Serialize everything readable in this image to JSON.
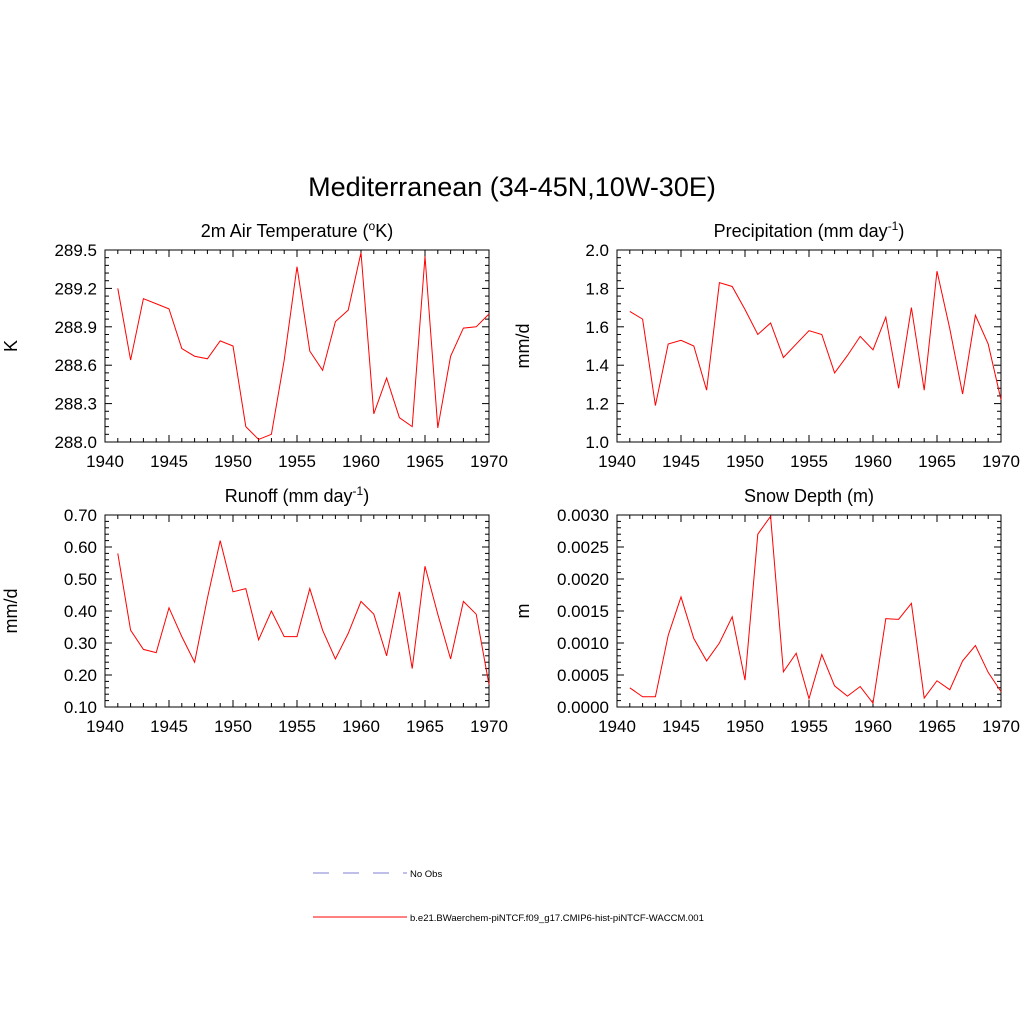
{
  "figure": {
    "title": "Mediterranean (34-45N,10W-30E)"
  },
  "legend": {
    "items": [
      {
        "label": "No Obs",
        "style": "dashed",
        "color": "#9999dd"
      },
      {
        "label": "b.e21.BWaerchem-piNTCF.f09_g17.CMIP6-hist-piNTCF-WACCM.001",
        "style": "solid",
        "color": "#ff0000"
      }
    ]
  },
  "chart_data": [
    {
      "type": "line",
      "title": "2m Air Temperature (",
      "title_super": "o",
      "title_after": "K)",
      "ylabel": "K",
      "xlim": [
        1940,
        1970
      ],
      "ylim": [
        288.0,
        289.5
      ],
      "xticks": [
        1940,
        1945,
        1950,
        1955,
        1960,
        1965,
        1970
      ],
      "xtick_labels": [
        "1940",
        "1945",
        "1950",
        "1955",
        "1960",
        "1965",
        "1970"
      ],
      "yticks": [
        288.0,
        288.3,
        288.6,
        288.9,
        289.2,
        289.5
      ],
      "ytick_labels": [
        "288.0",
        "288.3",
        "288.6",
        "288.9",
        "289.2",
        "289.5"
      ],
      "series": [
        {
          "color": "#ff0000",
          "x": [
            1941,
            1942,
            1943,
            1944,
            1945,
            1946,
            1947,
            1948,
            1949,
            1950,
            1951,
            1952,
            1953,
            1954,
            1955,
            1956,
            1957,
            1958,
            1959,
            1960,
            1961,
            1962,
            1963,
            1964,
            1965,
            1966,
            1967,
            1968,
            1969,
            1970
          ],
          "y": [
            289.2,
            288.64,
            289.12,
            289.08,
            289.04,
            288.73,
            288.67,
            288.65,
            288.79,
            288.75,
            288.12,
            288.02,
            288.06,
            288.64,
            289.37,
            288.71,
            288.56,
            288.94,
            289.03,
            289.48,
            288.22,
            288.5,
            288.19,
            288.12,
            289.45,
            288.11,
            288.67,
            288.89,
            288.9,
            289.0
          ]
        }
      ]
    },
    {
      "type": "line",
      "title": "Precipitation (mm day",
      "title_super": "-1",
      "title_after": ")",
      "ylabel": "mm/d",
      "xlim": [
        1940,
        1970
      ],
      "ylim": [
        1.0,
        2.0
      ],
      "xticks": [
        1940,
        1945,
        1950,
        1955,
        1960,
        1965,
        1970
      ],
      "xtick_labels": [
        "1940",
        "1945",
        "1950",
        "1955",
        "1960",
        "1965",
        "1970"
      ],
      "yticks": [
        1.0,
        1.2,
        1.4,
        1.6,
        1.8,
        2.0
      ],
      "ytick_labels": [
        "1.0",
        "1.2",
        "1.4",
        "1.6",
        "1.8",
        "2.0"
      ],
      "series": [
        {
          "color": "#ff0000",
          "x": [
            1941,
            1942,
            1943,
            1944,
            1945,
            1946,
            1947,
            1948,
            1949,
            1950,
            1951,
            1952,
            1953,
            1954,
            1955,
            1956,
            1957,
            1958,
            1959,
            1960,
            1961,
            1962,
            1963,
            1964,
            1965,
            1966,
            1967,
            1968,
            1969,
            1970
          ],
          "y": [
            1.68,
            1.64,
            1.19,
            1.51,
            1.53,
            1.5,
            1.27,
            1.83,
            1.81,
            1.69,
            1.56,
            1.62,
            1.44,
            1.51,
            1.58,
            1.56,
            1.36,
            1.45,
            1.55,
            1.48,
            1.65,
            1.28,
            1.7,
            1.27,
            1.89,
            1.59,
            1.25,
            1.66,
            1.51,
            1.22
          ]
        }
      ]
    },
    {
      "type": "line",
      "title": "Runoff (mm day",
      "title_super": "-1",
      "title_after": ")",
      "ylabel": "mm/d",
      "xlim": [
        1940,
        1970
      ],
      "ylim": [
        0.1,
        0.7
      ],
      "xticks": [
        1940,
        1945,
        1950,
        1955,
        1960,
        1965,
        1970
      ],
      "xtick_labels": [
        "1940",
        "1945",
        "1950",
        "1955",
        "1960",
        "1965",
        "1970"
      ],
      "yticks": [
        0.1,
        0.2,
        0.3,
        0.4,
        0.5,
        0.6,
        0.7
      ],
      "ytick_labels": [
        "0.10",
        "0.20",
        "0.30",
        "0.40",
        "0.50",
        "0.60",
        "0.70"
      ],
      "series": [
        {
          "color": "#ff0000",
          "x": [
            1941,
            1942,
            1943,
            1944,
            1945,
            1946,
            1947,
            1948,
            1949,
            1950,
            1951,
            1952,
            1953,
            1954,
            1955,
            1956,
            1957,
            1958,
            1959,
            1960,
            1961,
            1962,
            1963,
            1964,
            1965,
            1966,
            1967,
            1968,
            1969,
            1970
          ],
          "y": [
            0.58,
            0.34,
            0.28,
            0.27,
            0.41,
            0.32,
            0.24,
            0.44,
            0.62,
            0.46,
            0.47,
            0.31,
            0.4,
            0.32,
            0.32,
            0.47,
            0.34,
            0.25,
            0.33,
            0.43,
            0.39,
            0.26,
            0.46,
            0.22,
            0.54,
            0.39,
            0.25,
            0.43,
            0.39,
            0.17
          ]
        }
      ]
    },
    {
      "type": "line",
      "title": "Snow Depth (m)",
      "title_super": "",
      "title_after": "",
      "ylabel": "m",
      "xlim": [
        1940,
        1970
      ],
      "ylim": [
        0.0,
        0.003
      ],
      "xticks": [
        1940,
        1945,
        1950,
        1955,
        1960,
        1965,
        1970
      ],
      "xtick_labels": [
        "1940",
        "1945",
        "1950",
        "1955",
        "1960",
        "1965",
        "1970"
      ],
      "yticks": [
        0.0,
        0.0005,
        0.001,
        0.0015,
        0.002,
        0.0025,
        0.003
      ],
      "ytick_labels": [
        "0.0000",
        "0.0005",
        "0.0010",
        "0.0015",
        "0.0020",
        "0.0025",
        "0.0030"
      ],
      "series": [
        {
          "color": "#ff0000",
          "x": [
            1941,
            1942,
            1943,
            1944,
            1945,
            1946,
            1947,
            1948,
            1949,
            1950,
            1951,
            1952,
            1953,
            1954,
            1955,
            1956,
            1957,
            1958,
            1959,
            1960,
            1961,
            1962,
            1963,
            1964,
            1965,
            1966,
            1967,
            1968,
            1969,
            1970
          ],
          "y": [
            0.0003,
            0.00016,
            0.00016,
            0.00112,
            0.00172,
            0.00107,
            0.00072,
            0.001,
            0.00141,
            0.00042,
            0.0027,
            0.00298,
            0.00055,
            0.00084,
            0.00013,
            0.00082,
            0.00033,
            0.00017,
            0.00032,
            6e-05,
            0.00138,
            0.00137,
            0.00162,
            0.00014,
            0.00041,
            0.00027,
            0.00072,
            0.00096,
            0.00054,
            0.00024
          ]
        }
      ]
    }
  ]
}
